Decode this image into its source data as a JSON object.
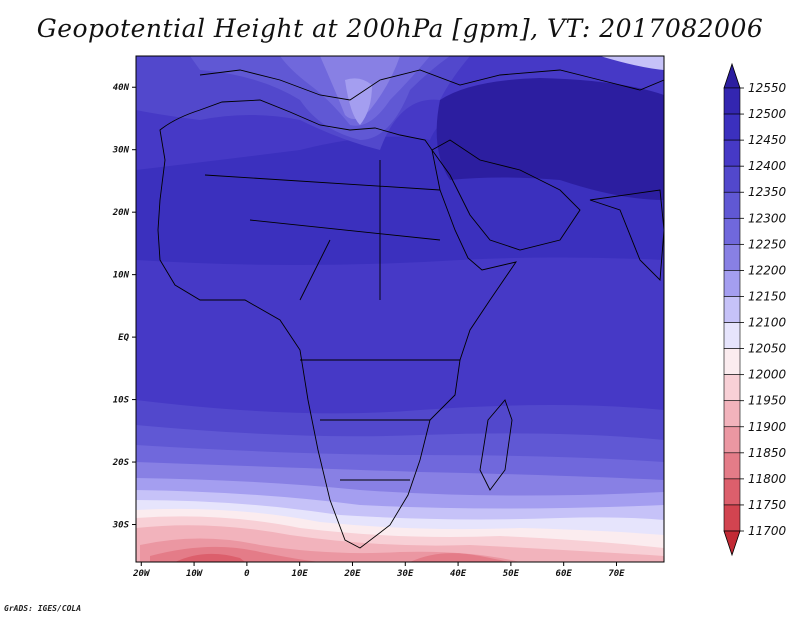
{
  "title": "Geopotential Height at 200hPa [gpm], VT: 2017082006",
  "footer": "GrADS: IGES/COLA",
  "axes": {
    "lon_labels": [
      "20W",
      "10W",
      "0",
      "10E",
      "20E",
      "30E",
      "40E",
      "50E",
      "60E",
      "70E"
    ],
    "lon_values": [
      -20,
      -10,
      0,
      10,
      20,
      30,
      40,
      50,
      60,
      70
    ],
    "lat_labels": [
      "40N",
      "30N",
      "20N",
      "10N",
      "EQ",
      "10S",
      "20S",
      "30S"
    ],
    "lat_values": [
      40,
      30,
      20,
      10,
      0,
      -10,
      -20,
      -30
    ],
    "lon_range": [
      -21,
      79
    ],
    "lat_range": [
      -36,
      45
    ]
  },
  "colorbar": {
    "labels": [
      "12550",
      "12500",
      "12450",
      "12400",
      "12350",
      "12300",
      "12250",
      "12200",
      "12150",
      "12100",
      "12050",
      "12000",
      "11950",
      "11900",
      "11850",
      "11800",
      "11750",
      "11700"
    ],
    "colors_top_to_bottom": [
      "#2c1ea0",
      "#3326b0",
      "#3b30be",
      "#4639c6",
      "#5248cc",
      "#6058d4",
      "#7068dc",
      "#8880e4",
      "#a49ef0",
      "#c6c2f8",
      "#e6e4fc",
      "#fbecef",
      "#f8d0d6",
      "#f2b3bc",
      "#eb97a2",
      "#e47c88",
      "#dc5f6c",
      "#d24450",
      "#c22a34"
    ]
  },
  "chart_data": {
    "type": "heatmap",
    "title": "Geopotential Height at 200hPa [gpm], VT: 2017082006",
    "variable": "Geopotential Height at 200hPa",
    "units": "gpm",
    "valid_time": "2017082006",
    "x_axis": "longitude",
    "y_axis": "latitude",
    "xlim": [
      -21,
      79
    ],
    "ylim": [
      -36,
      45
    ],
    "contour_levels": [
      11700,
      11750,
      11800,
      11850,
      11900,
      11950,
      12000,
      12050,
      12100,
      12150,
      12200,
      12250,
      12300,
      12350,
      12400,
      12450,
      12500,
      12550
    ],
    "approx_field": [
      {
        "lat": 40,
        "note_value": 12380
      },
      {
        "lat": 30,
        "lon": 55,
        "note_value": 12510
      },
      {
        "lat": 33,
        "lon": 20,
        "note_value": 12250
      },
      {
        "lat": 20,
        "note_value": 12440
      },
      {
        "lat": 0,
        "note_value": 12420
      },
      {
        "lat": -10,
        "note_value": 12410
      },
      {
        "lat": -20,
        "note_value": 12330
      },
      {
        "lat": -27,
        "note_value": 12150
      },
      {
        "lat": -35,
        "lon": 0,
        "note_value": 11850
      }
    ],
    "grid": false,
    "legend_placement": "right"
  }
}
